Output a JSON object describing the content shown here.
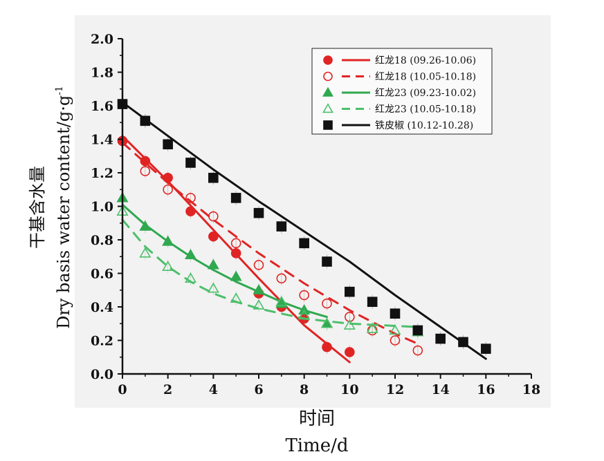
{
  "chart_data": {
    "type": "scatter",
    "xlabel_cn": "时间",
    "xlabel_en": "Time/d",
    "ylabel_cn": "干基含水量",
    "ylabel_en": "Dry basis water content/g·g",
    "ylabel_sup": "-1",
    "xlim": [
      0,
      18
    ],
    "ylim": [
      0,
      2.0
    ],
    "xticks": [
      "0",
      "2",
      "4",
      "6",
      "8",
      "10",
      "12",
      "14",
      "16",
      "18"
    ],
    "yticks": [
      "0.0",
      "0.2",
      "0.4",
      "0.6",
      "0.8",
      "1.0",
      "1.2",
      "1.4",
      "1.6",
      "1.8",
      "2.0"
    ],
    "legend_position": "top-right",
    "grid": false,
    "series": [
      {
        "name": "红龙18 (09.26-10.06)",
        "color": "#e02424",
        "marker": "circle-filled",
        "line": "solid",
        "x": [
          0,
          1,
          2,
          3,
          4,
          5,
          6,
          7,
          8,
          9,
          10
        ],
        "y": [
          1.39,
          1.27,
          1.17,
          0.97,
          0.82,
          0.72,
          0.48,
          0.4,
          0.33,
          0.16,
          0.13
        ],
        "fit": [
          [
            0,
            1.42
          ],
          [
            2,
            1.15
          ],
          [
            4,
            0.86
          ],
          [
            6,
            0.57
          ],
          [
            8,
            0.29
          ],
          [
            10,
            0.07
          ]
        ]
      },
      {
        "name": "红龙18 (10.05-10.18)",
        "color": "#e02424",
        "marker": "circle-open",
        "line": "dashed",
        "x": [
          0,
          1,
          2,
          3,
          4,
          5,
          6,
          7,
          8,
          9,
          10,
          11,
          12,
          13
        ],
        "y": [
          1.39,
          1.21,
          1.1,
          1.05,
          0.94,
          0.78,
          0.65,
          0.57,
          0.47,
          0.42,
          0.34,
          0.26,
          0.2,
          0.14
        ],
        "fit": [
          [
            0,
            1.38
          ],
          [
            2,
            1.14
          ],
          [
            4,
            0.92
          ],
          [
            6,
            0.72
          ],
          [
            8,
            0.54
          ],
          [
            10,
            0.38
          ],
          [
            12,
            0.24
          ],
          [
            13,
            0.18
          ]
        ]
      },
      {
        "name": "红龙23 (09.23-10.02)",
        "color": "#2fa84f",
        "marker": "triangle-filled",
        "line": "solid",
        "x": [
          0,
          1,
          2,
          3,
          4,
          5,
          6,
          7,
          8,
          9
        ],
        "y": [
          1.05,
          0.88,
          0.79,
          0.71,
          0.65,
          0.58,
          0.5,
          0.42,
          0.38,
          0.3
        ],
        "fit": [
          [
            0,
            1.01
          ],
          [
            1,
            0.89
          ],
          [
            2,
            0.79
          ],
          [
            3,
            0.7
          ],
          [
            4,
            0.62
          ],
          [
            5,
            0.55
          ],
          [
            6,
            0.49
          ],
          [
            7,
            0.43
          ],
          [
            8,
            0.38
          ],
          [
            9,
            0.34
          ]
        ]
      },
      {
        "name": "红龙23 (10.05-10.18)",
        "color": "#4cbf6a",
        "marker": "triangle-open",
        "line": "dashed",
        "x": [
          0,
          1,
          2,
          3,
          4,
          5,
          6,
          7,
          8,
          9,
          10,
          11,
          12,
          13
        ],
        "y": [
          0.97,
          0.72,
          0.64,
          0.57,
          0.51,
          0.45,
          0.41,
          0.43,
          0.35,
          0.3,
          0.29,
          0.27,
          0.26,
          0.25
        ],
        "fit": [
          [
            0,
            0.92
          ],
          [
            1,
            0.76
          ],
          [
            2,
            0.64
          ],
          [
            3,
            0.55
          ],
          [
            4,
            0.48
          ],
          [
            5,
            0.43
          ],
          [
            6,
            0.39
          ],
          [
            7,
            0.36
          ],
          [
            8,
            0.33
          ],
          [
            10,
            0.3
          ],
          [
            13,
            0.28
          ]
        ]
      },
      {
        "name": "铁皮椒 (10.12-10.28)",
        "color": "#111111",
        "marker": "square-filled",
        "line": "solid",
        "x": [
          0,
          1,
          2,
          3,
          4,
          5,
          6,
          7,
          8,
          9,
          10,
          11,
          12,
          13,
          14,
          15,
          16
        ],
        "y": [
          1.61,
          1.51,
          1.37,
          1.26,
          1.17,
          1.05,
          0.96,
          0.88,
          0.78,
          0.67,
          0.49,
          0.43,
          0.36,
          0.26,
          0.21,
          0.19,
          0.15
        ],
        "fit": [
          [
            0,
            1.62
          ],
          [
            2,
            1.42
          ],
          [
            4,
            1.22
          ],
          [
            6,
            1.03
          ],
          [
            8,
            0.85
          ],
          [
            10,
            0.67
          ],
          [
            12,
            0.47
          ],
          [
            14,
            0.28
          ],
          [
            16,
            0.09
          ]
        ]
      }
    ]
  }
}
